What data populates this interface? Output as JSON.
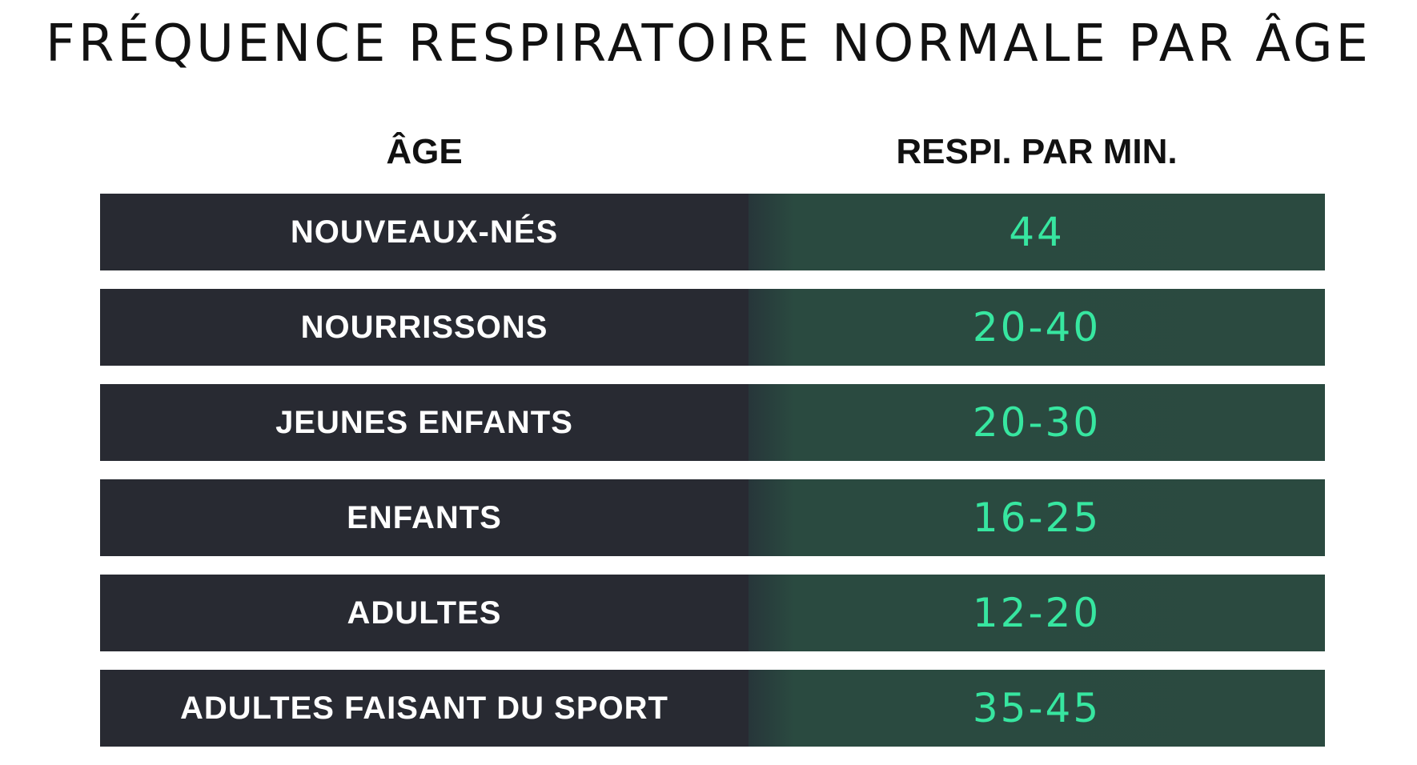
{
  "title": "FRÉQUENCE RESPIRATOIRE NORMALE PAR ÂGE",
  "headers": {
    "age": "ÂGE",
    "rate": "RESPI. PAR MIN."
  },
  "colors": {
    "age_cell": "#282a32",
    "rate_cell": "#2b4a40",
    "rate_text": "#37e6a0",
    "age_text": "#ffffff"
  },
  "rows": [
    {
      "age": "NOUVEAUX-NÉS",
      "rate": "44"
    },
    {
      "age": "NOURRISSONS",
      "rate": "20-40"
    },
    {
      "age": "JEUNES ENFANTS",
      "rate": "20-30"
    },
    {
      "age": "ENFANTS",
      "rate": "16-25"
    },
    {
      "age": "ADULTES",
      "rate": "12-20"
    },
    {
      "age": "ADULTES FAISANT DU SPORT",
      "rate": "35-45"
    }
  ]
}
